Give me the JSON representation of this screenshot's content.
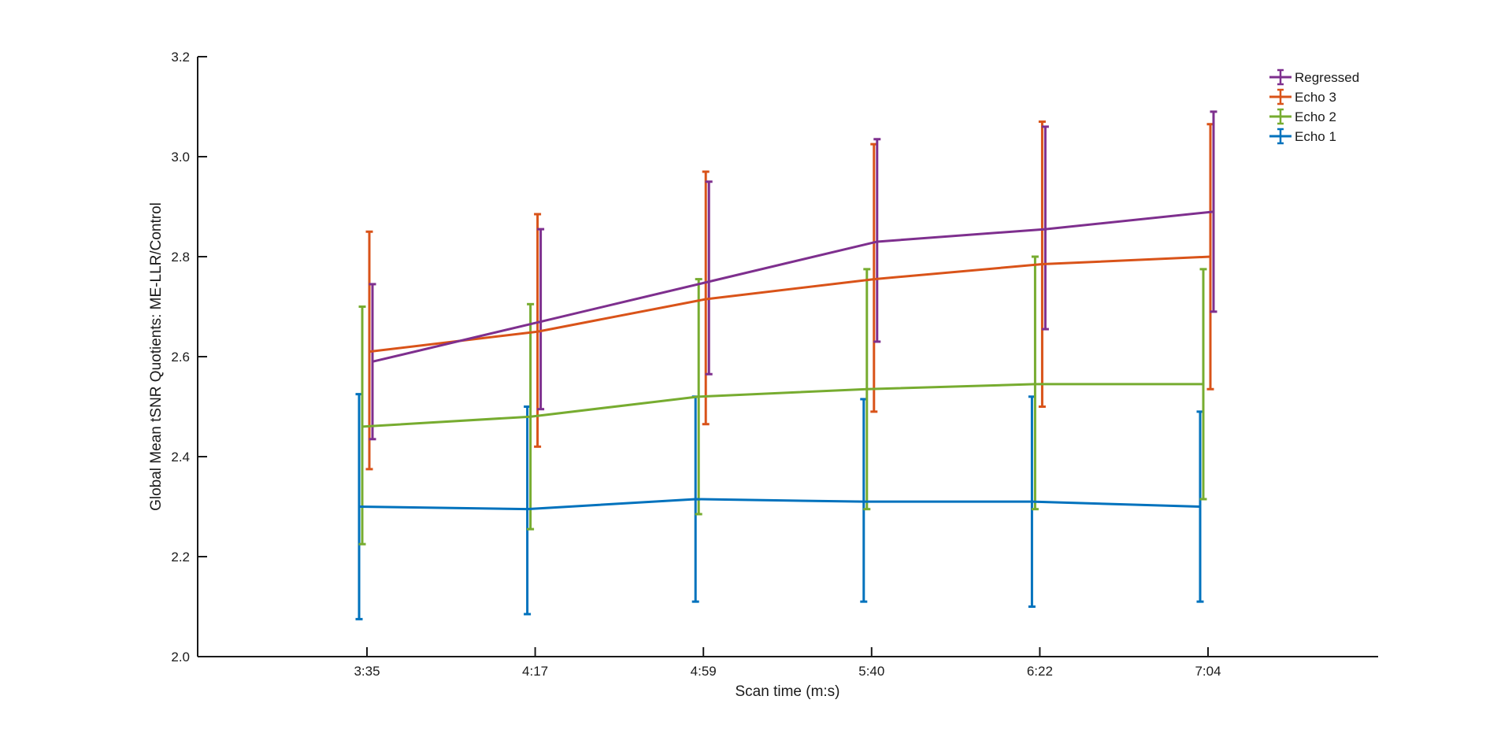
{
  "chart_data": {
    "type": "line",
    "title": "",
    "xlabel": "Scan time (m:s)",
    "ylabel": "Global Mean tSNR Quotients: ME-LLR/Control",
    "categories": [
      "3:35",
      "4:17",
      "4:59",
      "5:40",
      "6:22",
      "7:04"
    ],
    "ylim": [
      2.0,
      3.2
    ],
    "yticks": [
      "2.0",
      "2.2",
      "2.4",
      "2.6",
      "2.8",
      "3.0",
      "3.2"
    ],
    "grid": false,
    "legend_position": "top-right",
    "error_bars": true,
    "series": [
      {
        "name": "Regressed",
        "color": "#7e2f8e",
        "values": [
          2.59,
          2.67,
          2.75,
          2.83,
          2.855,
          2.89
        ],
        "lower": [
          2.435,
          2.495,
          2.565,
          2.63,
          2.655,
          2.69
        ],
        "upper": [
          2.745,
          2.855,
          2.95,
          3.035,
          3.06,
          3.09
        ]
      },
      {
        "name": "Echo 3",
        "color": "#d95319",
        "values": [
          2.61,
          2.65,
          2.715,
          2.755,
          2.785,
          2.8
        ],
        "lower": [
          2.375,
          2.42,
          2.465,
          2.49,
          2.5,
          2.535
        ],
        "upper": [
          2.85,
          2.885,
          2.97,
          3.025,
          3.07,
          3.065
        ]
      },
      {
        "name": "Echo 2",
        "color": "#77ac30",
        "values": [
          2.46,
          2.48,
          2.52,
          2.535,
          2.545,
          2.545
        ],
        "lower": [
          2.225,
          2.255,
          2.285,
          2.295,
          2.295,
          2.315
        ],
        "upper": [
          2.7,
          2.705,
          2.755,
          2.775,
          2.8,
          2.775
        ]
      },
      {
        "name": "Echo 1",
        "color": "#0072bd",
        "values": [
          2.3,
          2.295,
          2.315,
          2.31,
          2.31,
          2.3
        ],
        "lower": [
          2.075,
          2.085,
          2.11,
          2.11,
          2.1,
          2.11
        ],
        "upper": [
          2.525,
          2.5,
          2.52,
          2.515,
          2.52,
          2.49
        ]
      }
    ]
  }
}
